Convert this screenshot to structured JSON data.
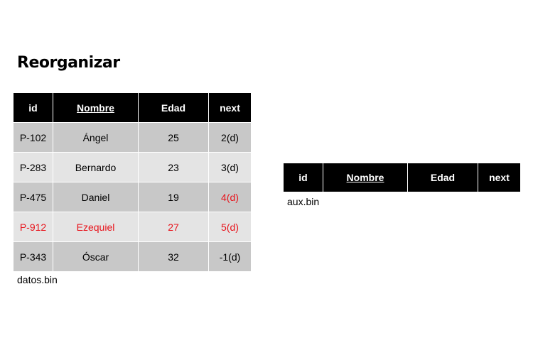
{
  "title": "Reorganizar",
  "headers": [
    "id",
    "Nombre",
    "Edad",
    "next"
  ],
  "datos_table": {
    "caption": "datos.bin",
    "rows": [
      {
        "id": "P-102",
        "nombre": "Ángel",
        "edad": "25",
        "next": "2(d)"
      },
      {
        "id": "P-283",
        "nombre": "Bernardo",
        "edad": "23",
        "next": "3(d)"
      },
      {
        "id": "P-475",
        "nombre": "Daniel",
        "edad": "19",
        "next": "4(d)"
      },
      {
        "id": "P-912",
        "nombre": "Ezequiel",
        "edad": "27",
        "next": "5(d)"
      },
      {
        "id": "P-343",
        "nombre": "Óscar",
        "edad": "32",
        "next": "-1(d)"
      }
    ]
  },
  "aux_table": {
    "caption": "aux.bin"
  },
  "colors": {
    "header_bg": "#000000",
    "row_dark": "#c8c8c8",
    "row_light": "#e4e4e4",
    "highlight": "#e8131b"
  }
}
